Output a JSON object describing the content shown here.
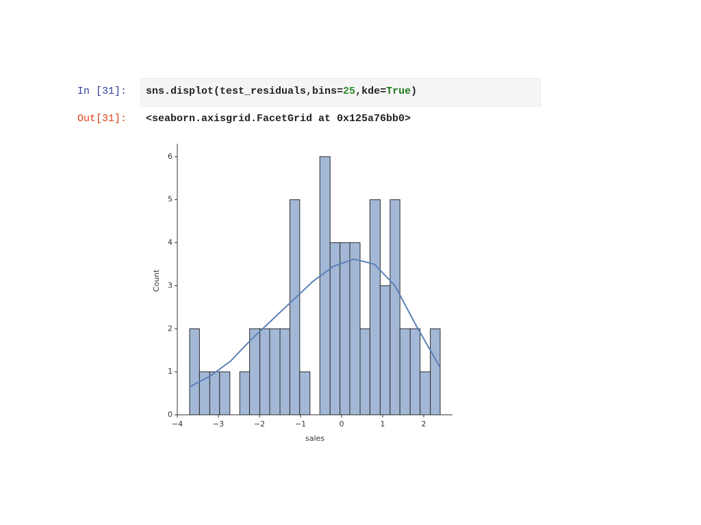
{
  "notebook": {
    "in_prompt": "In [31]:",
    "code_tokens": [
      "sns.displot(test_residuals,bins=",
      "25",
      ",kde=",
      "True",
      ")"
    ],
    "out_prompt": "Out[31]:",
    "output_text": "<seaborn.axisgrid.FacetGrid at 0x125a76bb0>"
  },
  "chart_data": {
    "type": "histogram",
    "xlabel": "sales",
    "ylabel": "Count",
    "bins": [
      -3.7,
      -3.46,
      -3.21,
      -2.97,
      -2.72,
      -2.48,
      -2.24,
      -1.99,
      -1.75,
      -1.5,
      -1.26,
      -1.02,
      -0.77,
      -0.53,
      -0.28,
      -0.04,
      0.2,
      0.45,
      0.69,
      0.94,
      1.18,
      1.42,
      1.67,
      1.91,
      2.16,
      2.4
    ],
    "counts": [
      2,
      1,
      1,
      1,
      0,
      1,
      2,
      2,
      2,
      2,
      5,
      1,
      0,
      6,
      4,
      4,
      4,
      2,
      5,
      3,
      5,
      2,
      2,
      1,
      2
    ],
    "color": "#a3b8d6",
    "edgecolor": "#2b2b2b",
    "kde": {
      "x": [
        -3.7,
        -3.2,
        -2.7,
        -2.2,
        -1.7,
        -1.2,
        -0.7,
        -0.2,
        0.3,
        0.8,
        1.3,
        1.8,
        2.4
      ],
      "values": [
        0.65,
        0.9,
        1.25,
        1.75,
        2.2,
        2.65,
        3.1,
        3.45,
        3.62,
        3.5,
        3.0,
        2.1,
        1.1
      ],
      "color": "#5b80b8"
    },
    "xlim": [
      -4,
      2.7
    ],
    "ylim": [
      0,
      6.3
    ],
    "xticks": [
      {
        "value": -4,
        "label": "−4"
      },
      {
        "value": -3,
        "label": "−3"
      },
      {
        "value": -2,
        "label": "−2"
      },
      {
        "value": -1,
        "label": "−1"
      },
      0,
      1,
      2
    ],
    "yticks": [
      0,
      1,
      2,
      3,
      4,
      5,
      6
    ]
  }
}
